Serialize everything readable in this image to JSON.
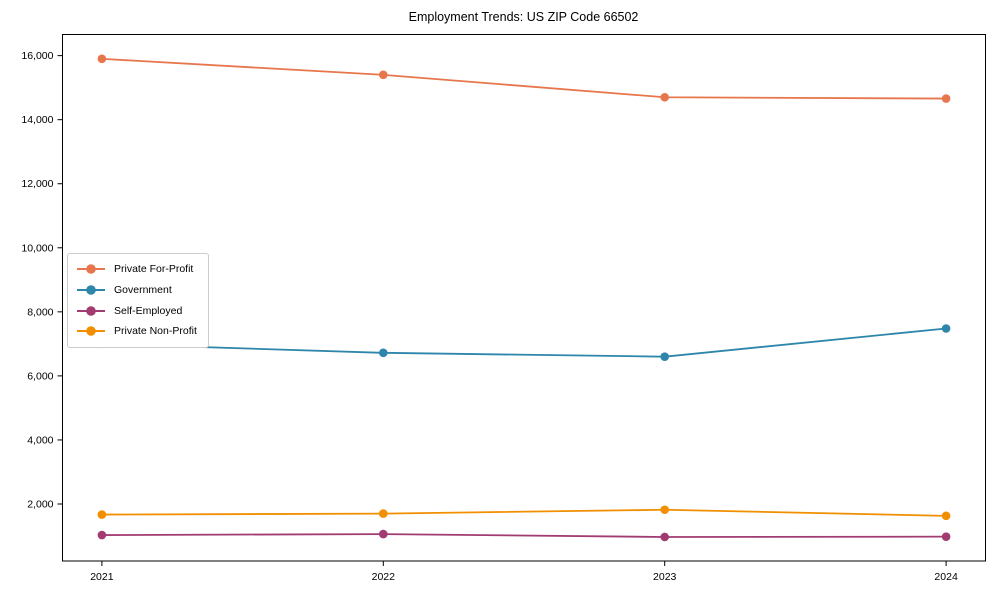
{
  "chart_data": {
    "type": "line",
    "title": "Employment Trends: US ZIP Code 66502",
    "x": [
      2021,
      2022,
      2023,
      2024
    ],
    "x_tick_labels": [
      "2021",
      "2022",
      "2023",
      "2024"
    ],
    "series": [
      {
        "name": "Private For-Profit",
        "color": "#E8764D",
        "values": [
          15900,
          15400,
          14700,
          14660
        ]
      },
      {
        "name": "Government",
        "color": "#2E86AB",
        "values": [
          7000,
          6720,
          6600,
          7480
        ]
      },
      {
        "name": "Self-Employed",
        "color": "#A23B72",
        "values": [
          1030,
          1060,
          970,
          980
        ]
      },
      {
        "name": "Private Non-Profit",
        "color": "#F18F01",
        "values": [
          1670,
          1700,
          1820,
          1630
        ]
      }
    ],
    "xlabel": "",
    "ylabel": "",
    "xlim": [
      2020.86,
      2024.14
    ],
    "ylim": [
      220,
      16660
    ],
    "y_ticks": [
      2000,
      4000,
      6000,
      8000,
      10000,
      12000,
      14000,
      16000
    ],
    "y_tick_labels": [
      "2,000",
      "4,000",
      "6,000",
      "8,000",
      "10,000",
      "12,000",
      "14,000",
      "16,000"
    ],
    "grid": false,
    "legend_position": "center left",
    "marker": "circle",
    "axis_color": "#000000",
    "background": "#ffffff"
  }
}
